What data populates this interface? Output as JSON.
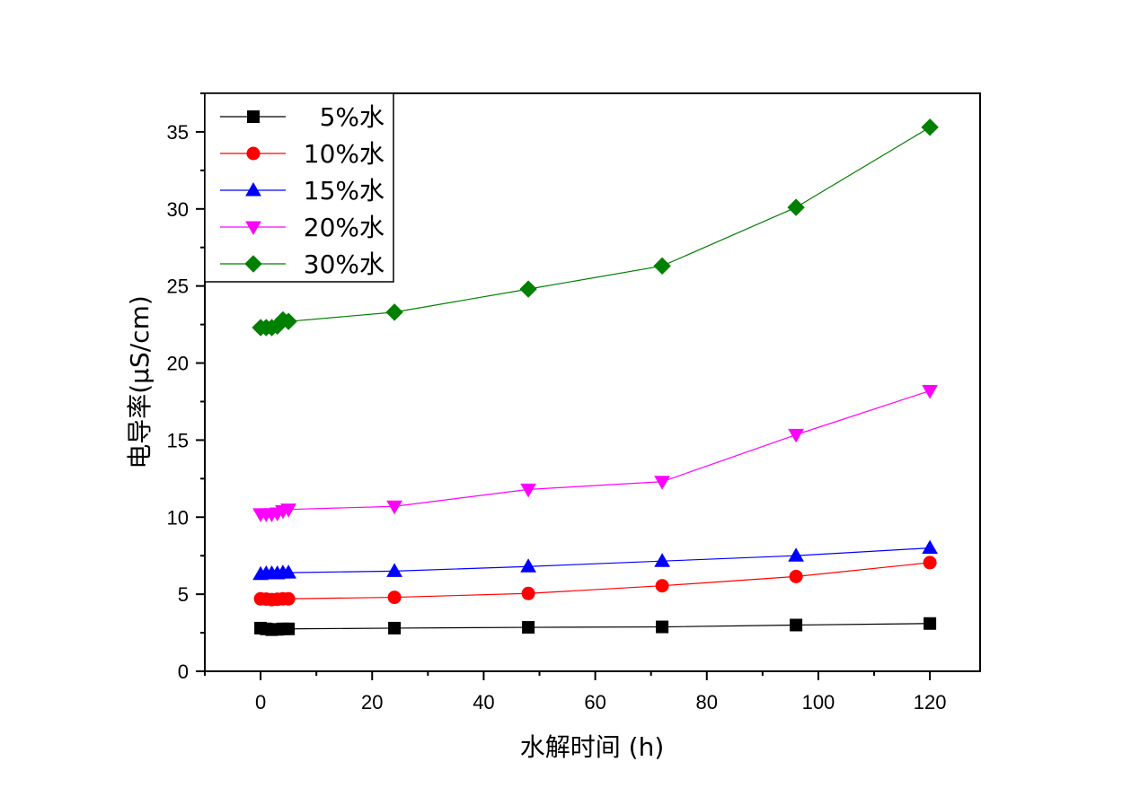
{
  "chart_data": {
    "type": "line",
    "title": "",
    "xlabel": "水解时间 (h)",
    "ylabel": "电导率(μS/cm)",
    "xlim": [
      -10,
      129
    ],
    "ylim": [
      0,
      37.5
    ],
    "xticks": [
      0,
      20,
      40,
      60,
      80,
      100,
      120
    ],
    "yticks": [
      0,
      5,
      10,
      15,
      20,
      25,
      30,
      35
    ],
    "x": [
      0,
      1,
      2,
      3,
      4,
      5,
      24,
      48,
      72,
      96,
      120
    ],
    "legend_position": "top-left",
    "grid": false,
    "series": [
      {
        "name": "5%水",
        "color": "#000000",
        "marker": "square",
        "values": [
          2.8,
          2.75,
          2.7,
          2.72,
          2.75,
          2.75,
          2.8,
          2.85,
          2.88,
          3.0,
          3.1
        ]
      },
      {
        "name": "10%水",
        "color": "#ff0000",
        "marker": "circle",
        "values": [
          4.7,
          4.68,
          4.65,
          4.67,
          4.7,
          4.7,
          4.8,
          5.05,
          5.55,
          6.15,
          7.05
        ]
      },
      {
        "name": "15%水",
        "color": "#0000ff",
        "marker": "triangle-up",
        "values": [
          6.3,
          6.35,
          6.35,
          6.35,
          6.4,
          6.4,
          6.5,
          6.8,
          7.15,
          7.5,
          8.0
        ]
      },
      {
        "name": "20%水",
        "color": "#ff00ff",
        "marker": "triangle-down",
        "values": [
          10.2,
          10.2,
          10.2,
          10.25,
          10.4,
          10.5,
          10.7,
          11.8,
          12.3,
          15.35,
          18.2
        ]
      },
      {
        "name": "30%水",
        "color": "#008000",
        "marker": "diamond",
        "values": [
          22.3,
          22.3,
          22.3,
          22.4,
          22.8,
          22.7,
          23.3,
          24.8,
          26.3,
          30.1,
          35.3
        ]
      }
    ]
  }
}
